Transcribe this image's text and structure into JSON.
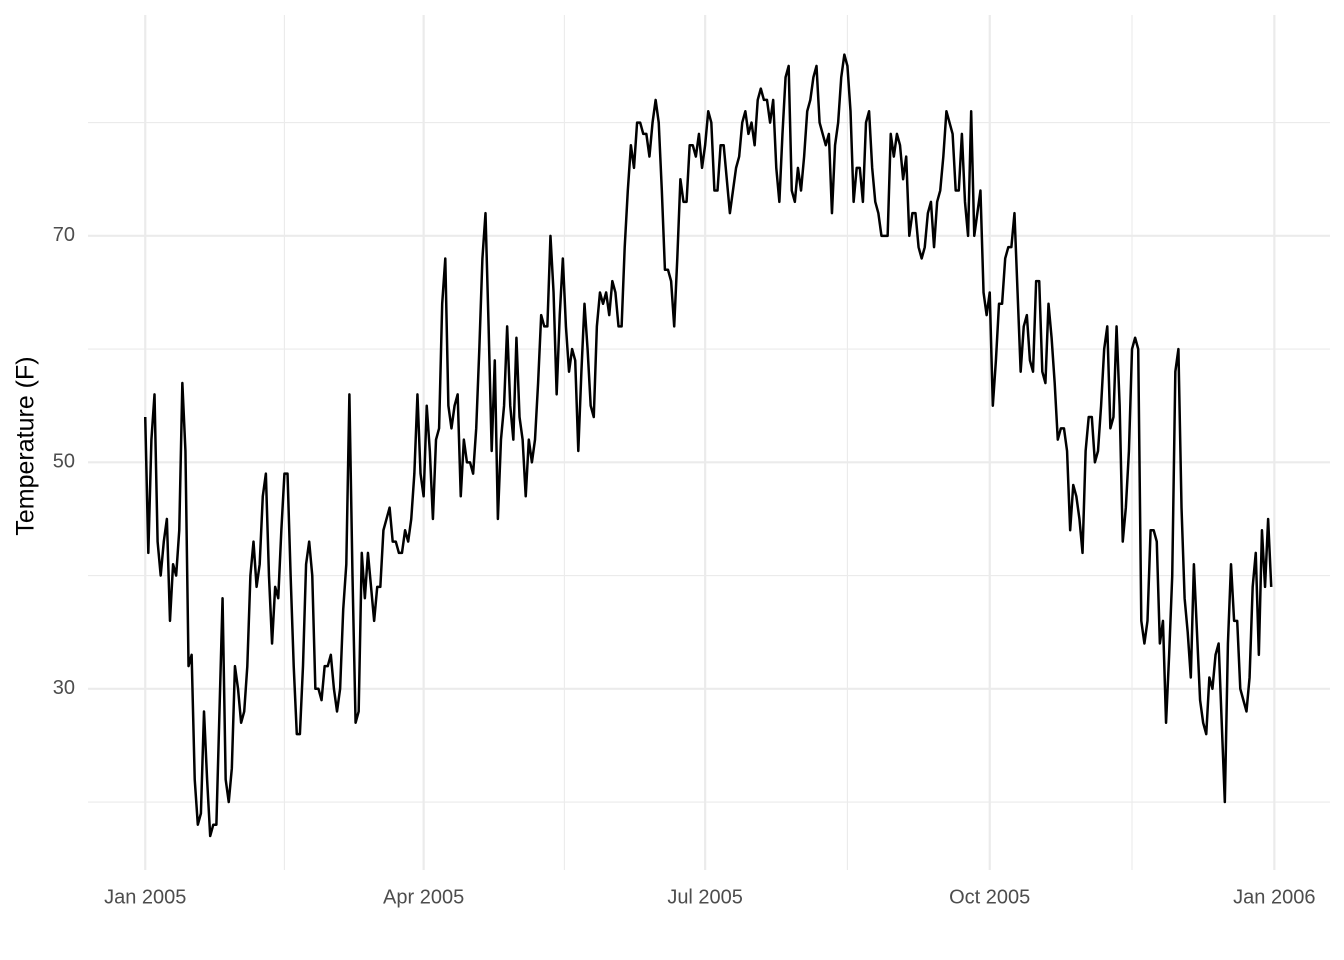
{
  "chart_data": {
    "type": "line",
    "ylabel": "Temperature (F)",
    "color": "#000000",
    "grid": true,
    "xlim": [
      -18.5,
      383
    ],
    "xticks": [
      {
        "value": 0,
        "label": "Jan 2005"
      },
      {
        "value": 90,
        "label": "Apr 2005"
      },
      {
        "value": 181,
        "label": "Jul 2005"
      },
      {
        "value": 273,
        "label": "Oct 2005"
      },
      {
        "value": 365,
        "label": "Jan 2006"
      }
    ],
    "ylim": [
      14,
      89.5
    ],
    "yticks": [
      30,
      50,
      70
    ],
    "values": [
      54,
      42,
      52,
      56,
      43,
      40,
      43,
      45,
      36,
      41,
      40,
      44,
      57,
      51,
      32,
      33,
      22,
      18,
      19,
      28,
      22,
      17,
      18,
      18,
      28,
      38,
      22,
      20,
      23,
      32,
      30,
      27,
      28,
      32,
      40,
      43,
      39,
      41,
      47,
      49,
      40,
      34,
      39,
      38,
      44,
      49,
      49,
      40,
      32,
      26,
      26,
      32,
      41,
      43,
      40,
      30,
      30,
      29,
      32,
      32,
      33,
      30,
      28,
      30,
      37,
      41,
      56,
      40,
      27,
      28,
      42,
      38,
      42,
      39,
      36,
      39,
      39,
      44,
      45,
      46,
      43,
      43,
      42,
      42,
      44,
      43,
      45,
      49,
      56,
      49,
      47,
      55,
      51,
      45,
      52,
      53,
      64,
      68,
      55,
      53,
      55,
      56,
      47,
      52,
      50,
      50,
      49,
      53,
      60,
      68,
      72,
      62,
      51,
      59,
      45,
      52,
      55,
      62,
      55,
      52,
      61,
      54,
      52,
      47,
      52,
      50,
      52,
      57,
      63,
      62,
      62,
      70,
      65,
      56,
      63,
      68,
      62,
      58,
      60,
      59,
      51,
      58,
      64,
      60,
      55,
      54,
      62,
      65,
      64,
      65,
      63,
      66,
      65,
      62,
      62,
      69,
      74,
      78,
      76,
      80,
      80,
      79,
      79,
      77,
      80,
      82,
      80,
      74,
      67,
      67,
      66,
      62,
      68,
      75,
      73,
      73,
      78,
      78,
      77,
      79,
      76,
      78,
      81,
      80,
      74,
      74,
      78,
      78,
      75,
      72,
      74,
      76,
      77,
      80,
      81,
      79,
      80,
      78,
      82,
      83,
      82,
      82,
      80,
      82,
      76,
      73,
      79,
      84,
      85,
      74,
      73,
      76,
      74,
      77,
      81,
      82,
      84,
      85,
      80,
      79,
      78,
      79,
      72,
      78,
      80,
      84,
      86,
      85,
      81,
      73,
      76,
      76,
      73,
      80,
      81,
      76,
      73,
      72,
      70,
      70,
      70,
      79,
      77,
      79,
      78,
      75,
      77,
      70,
      72,
      72,
      69,
      68,
      69,
      72,
      73,
      69,
      73,
      74,
      77,
      81,
      80,
      79,
      74,
      74,
      79,
      73,
      70,
      81,
      70,
      72,
      74,
      65,
      63,
      65,
      55,
      59,
      64,
      64,
      68,
      69,
      69,
      72,
      65,
      58,
      62,
      63,
      59,
      58,
      66,
      66,
      58,
      57,
      64,
      61,
      57,
      52,
      53,
      53,
      51,
      44,
      48,
      47,
      45,
      42,
      51,
      54,
      54,
      50,
      51,
      55,
      60,
      62,
      53,
      54,
      62,
      55,
      43,
      46,
      51,
      60,
      61,
      60,
      36,
      34,
      36,
      44,
      44,
      43,
      34,
      36,
      27,
      33,
      40,
      58,
      60,
      46,
      38,
      35,
      31,
      41,
      35,
      29,
      27,
      26,
      31,
      30,
      33,
      34,
      27,
      20,
      34,
      41,
      36,
      36,
      30,
      29,
      28,
      31,
      39,
      42,
      33,
      44,
      39,
      45,
      39
    ]
  }
}
